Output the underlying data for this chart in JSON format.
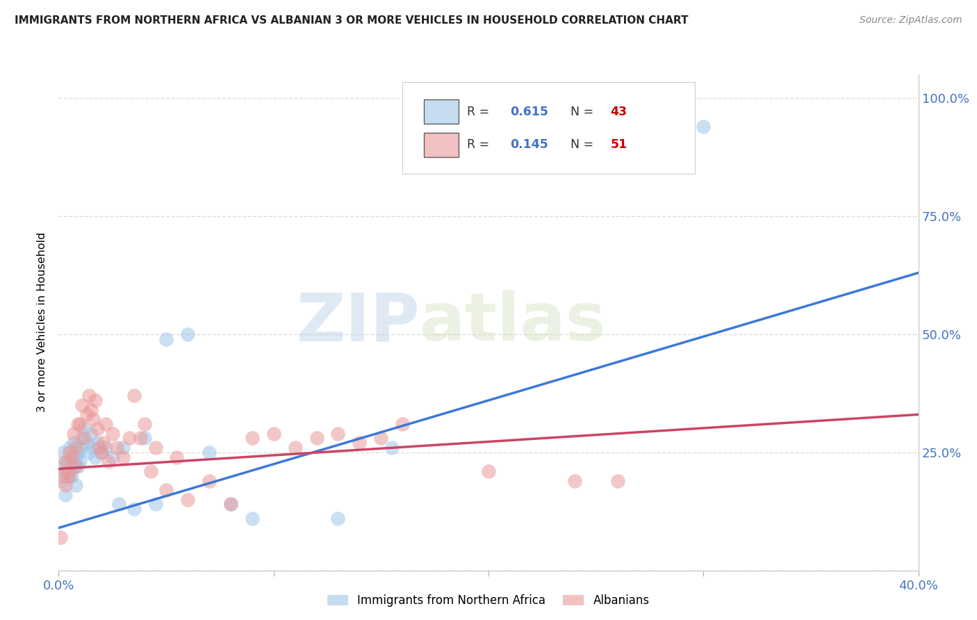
{
  "title": "IMMIGRANTS FROM NORTHERN AFRICA VS ALBANIAN 3 OR MORE VEHICLES IN HOUSEHOLD CORRELATION CHART",
  "source": "Source: ZipAtlas.com",
  "ylabel": "3 or more Vehicles in Household",
  "xlim": [
    0.0,
    0.4
  ],
  "ylim": [
    0.0,
    1.05
  ],
  "yticks": [
    0.0,
    0.25,
    0.5,
    0.75,
    1.0
  ],
  "ytick_labels": [
    "",
    "25.0%",
    "50.0%",
    "75.0%",
    "100.0%"
  ],
  "xticks": [
    0.0,
    0.1,
    0.2,
    0.3,
    0.4
  ],
  "xtick_labels": [
    "0.0%",
    "",
    "",
    "",
    "40.0%"
  ],
  "blue_color": "#9fc5e8",
  "pink_color": "#ea9999",
  "blue_line_color": "#3c78d8",
  "pink_line_color": "#cc4466",
  "watermark_zip": "ZIP",
  "watermark_atlas": "atlas",
  "blue_scatter_x": [
    0.001,
    0.002,
    0.002,
    0.003,
    0.003,
    0.004,
    0.004,
    0.005,
    0.005,
    0.006,
    0.006,
    0.007,
    0.007,
    0.008,
    0.008,
    0.009,
    0.009,
    0.01,
    0.01,
    0.011,
    0.012,
    0.013,
    0.014,
    0.015,
    0.016,
    0.017,
    0.018,
    0.02,
    0.022,
    0.025,
    0.028,
    0.03,
    0.035,
    0.04,
    0.045,
    0.05,
    0.06,
    0.07,
    0.08,
    0.09,
    0.13,
    0.155,
    0.3
  ],
  "blue_scatter_y": [
    0.22,
    0.25,
    0.19,
    0.21,
    0.16,
    0.23,
    0.2,
    0.26,
    0.21,
    0.24,
    0.2,
    0.27,
    0.22,
    0.24,
    0.18,
    0.25,
    0.22,
    0.26,
    0.23,
    0.28,
    0.3,
    0.27,
    0.25,
    0.29,
    0.26,
    0.24,
    0.27,
    0.25,
    0.26,
    0.24,
    0.14,
    0.26,
    0.13,
    0.28,
    0.14,
    0.49,
    0.5,
    0.25,
    0.14,
    0.11,
    0.11,
    0.26,
    0.94
  ],
  "pink_scatter_x": [
    0.001,
    0.002,
    0.003,
    0.003,
    0.004,
    0.005,
    0.005,
    0.006,
    0.007,
    0.008,
    0.008,
    0.009,
    0.01,
    0.011,
    0.012,
    0.013,
    0.014,
    0.015,
    0.016,
    0.017,
    0.018,
    0.019,
    0.02,
    0.021,
    0.022,
    0.023,
    0.025,
    0.027,
    0.03,
    0.033,
    0.035,
    0.038,
    0.04,
    0.043,
    0.045,
    0.05,
    0.055,
    0.06,
    0.07,
    0.08,
    0.09,
    0.1,
    0.11,
    0.12,
    0.13,
    0.14,
    0.15,
    0.16,
    0.2,
    0.24,
    0.26
  ],
  "pink_scatter_y": [
    0.07,
    0.2,
    0.23,
    0.18,
    0.21,
    0.25,
    0.2,
    0.24,
    0.29,
    0.26,
    0.22,
    0.31,
    0.31,
    0.35,
    0.28,
    0.33,
    0.37,
    0.34,
    0.32,
    0.36,
    0.3,
    0.26,
    0.25,
    0.27,
    0.31,
    0.23,
    0.29,
    0.26,
    0.24,
    0.28,
    0.37,
    0.28,
    0.31,
    0.21,
    0.26,
    0.17,
    0.24,
    0.15,
    0.19,
    0.14,
    0.28,
    0.29,
    0.26,
    0.28,
    0.29,
    0.27,
    0.28,
    0.31,
    0.21,
    0.19,
    0.19
  ],
  "blue_line_x0": 0.0,
  "blue_line_x1": 0.4,
  "blue_line_y0": 0.09,
  "blue_line_y1": 0.63,
  "pink_line_x0": 0.0,
  "pink_line_x1": 0.4,
  "pink_line_y0": 0.215,
  "pink_line_y1": 0.33,
  "grid_color": "#dddddd",
  "background_color": "#ffffff",
  "legend_r1_val": "0.615",
  "legend_n1_val": "43",
  "legend_r2_val": "0.145",
  "legend_n2_val": "51"
}
